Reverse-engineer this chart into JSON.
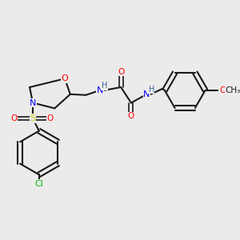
{
  "bg_color": "#ebebeb",
  "bond_color": "#1a1a1a",
  "colors": {
    "O": "#ff0000",
    "N": "#0000ff",
    "S": "#cccc00",
    "Cl": "#00bb00",
    "C": "#1a1a1a",
    "H": "#336699"
  },
  "figsize": [
    3.0,
    3.0
  ],
  "dpi": 100
}
